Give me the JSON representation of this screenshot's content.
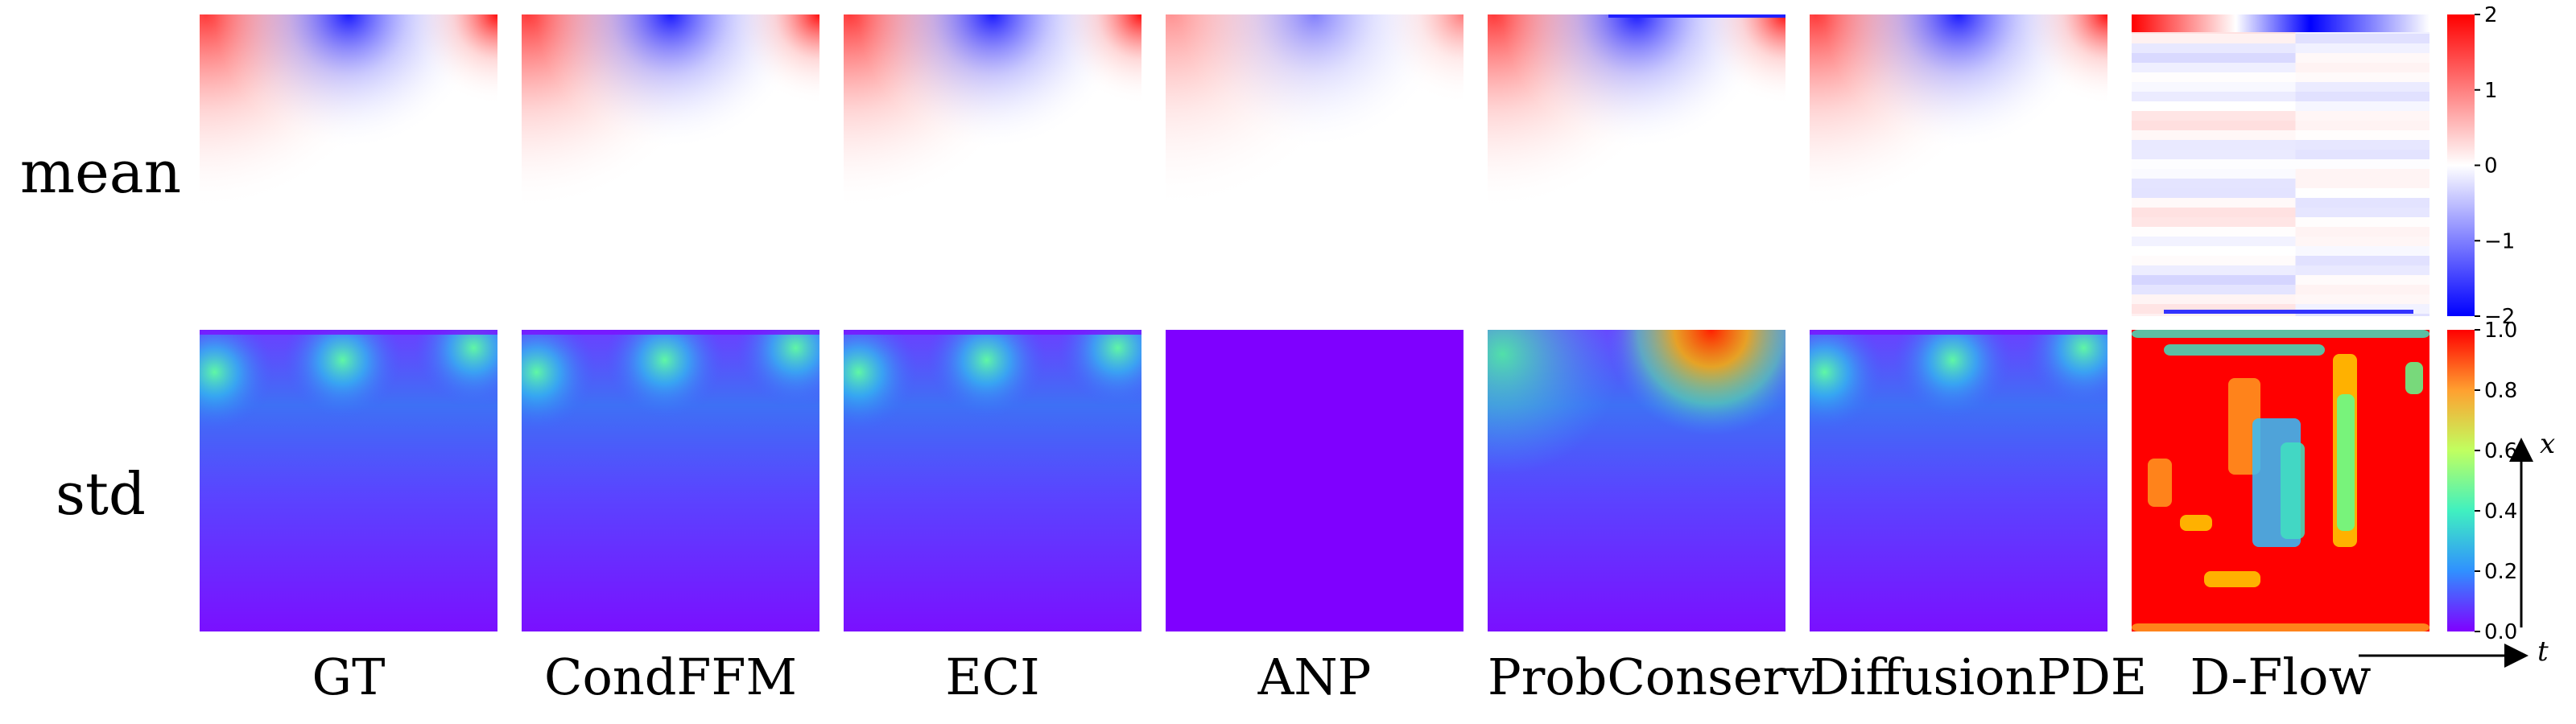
{
  "rows": [
    {
      "key": "mean",
      "label": "mean"
    },
    {
      "key": "std",
      "label": "std"
    }
  ],
  "columns": [
    {
      "label": "GT"
    },
    {
      "label": "CondFFM"
    },
    {
      "label": "ECI"
    },
    {
      "label": "ANP"
    },
    {
      "label": "ProbConserv"
    },
    {
      "label": "DiffusionPDE"
    },
    {
      "label": "D-Flow"
    }
  ],
  "colorbars": {
    "mean": {
      "colormap": "bwr",
      "min": -2,
      "max": 2,
      "ticks": [
        "2",
        "1",
        "0",
        "−1",
        "−2"
      ]
    },
    "std": {
      "colormap": "rainbow",
      "min": 0.0,
      "max": 1.0,
      "ticks": [
        "1.0",
        "0.8",
        "0.6",
        "0.4",
        "0.2",
        "0.0"
      ]
    }
  },
  "axes": {
    "vertical_var": "x",
    "horizontal_var": "t"
  },
  "colors": {
    "bwr_red": "#ff0000",
    "bwr_white": "#ffffff",
    "bwr_blue": "#0000ff",
    "rainbow_low": "#8000ff",
    "rainbow_high": "#ff0000"
  }
}
